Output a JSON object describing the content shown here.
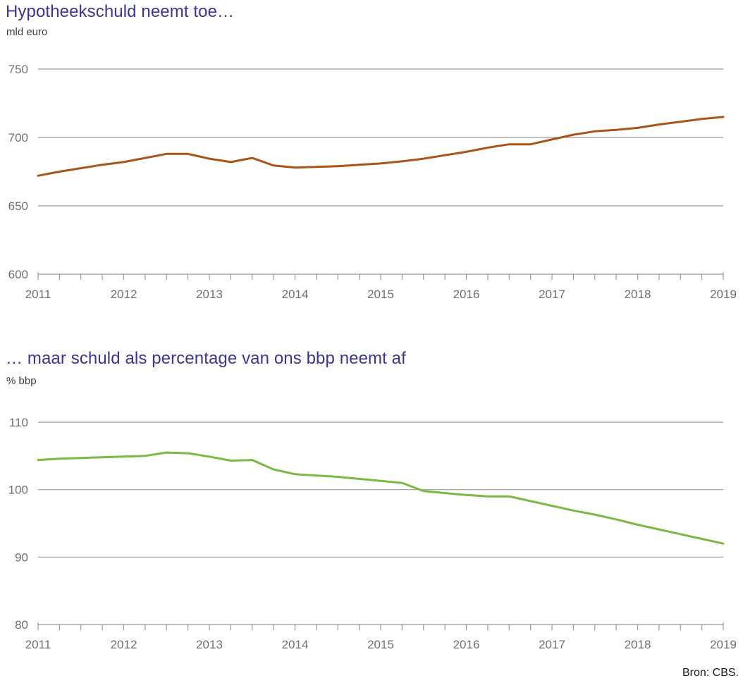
{
  "source": "Bron: CBS.",
  "colors": {
    "title": "#3a3597",
    "axis": "#999999",
    "grid": "#999999",
    "tick_label": "#707070",
    "mortgage_line": "#ab541a",
    "bbp_line": "#7cb842"
  },
  "chart_data": [
    {
      "type": "line",
      "title": "Hypotheekschuld neemt toe…",
      "unit_label": "mld euro",
      "xlabel": "",
      "ylabel": "mld euro",
      "xlim": [
        2011,
        2019
      ],
      "ylim": [
        600,
        750
      ],
      "y_ticks": [
        750,
        700,
        650,
        600
      ],
      "x_ticks": [
        2011,
        2012,
        2013,
        2014,
        2015,
        2016,
        2017,
        2018,
        2019
      ],
      "x_minor_step": 0.25,
      "grid": true,
      "legend": "none",
      "series": [
        {
          "name": "Hypotheekschuld (mld euro)",
          "color": "#ab541a",
          "x_start": 2011,
          "x_step": 0.25,
          "values": [
            672,
            675,
            677.5,
            680,
            682,
            685,
            688,
            688,
            684.5,
            682,
            685,
            679.5,
            678,
            678.5,
            679,
            680,
            681,
            682.5,
            684.5,
            687,
            689.5,
            692.5,
            695,
            695,
            698.5,
            702,
            704.5,
            705.5,
            707,
            709.5,
            711.5,
            713.5,
            715
          ]
        }
      ]
    },
    {
      "type": "line",
      "title": "… maar schuld als percentage van ons bbp neemt af",
      "unit_label": "% bbp",
      "xlabel": "",
      "ylabel": "% bbp",
      "xlim": [
        2011,
        2019
      ],
      "ylim": [
        80,
        110
      ],
      "y_ticks": [
        110,
        100,
        90,
        80
      ],
      "x_ticks": [
        2011,
        2012,
        2013,
        2014,
        2015,
        2016,
        2017,
        2018,
        2019
      ],
      "x_minor_step": 0.25,
      "grid": true,
      "legend": "none",
      "series": [
        {
          "name": "Schuld als % van bbp",
          "color": "#7cb842",
          "x_start": 2011,
          "x_step": 0.25,
          "values": [
            104.4,
            104.6,
            104.7,
            104.8,
            104.9,
            105.0,
            105.5,
            105.4,
            104.9,
            104.3,
            104.4,
            103.0,
            102.3,
            102.1,
            101.9,
            101.6,
            101.3,
            101.0,
            99.8,
            99.5,
            99.2,
            99.0,
            99.0,
            98.3,
            97.6,
            96.9,
            96.3,
            95.6,
            94.8,
            94.1,
            93.4,
            92.7,
            92.0
          ]
        }
      ]
    }
  ]
}
